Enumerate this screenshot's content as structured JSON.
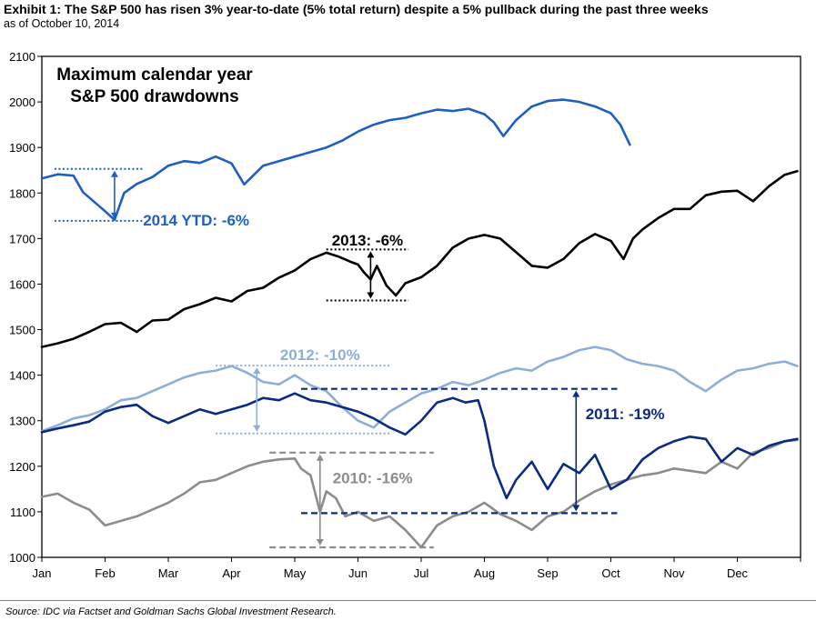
{
  "header": {
    "title": "Exhibit 1: The S&P 500 has risen 3% year-to-date (5% total return) despite a 5% pullback during the past three weeks",
    "subtitle": "as of October 10, 2014"
  },
  "footer": {
    "source": "Source: IDC via Factset and Goldman Sachs Global Investment Research."
  },
  "chart_data": {
    "type": "line",
    "title": "Maximum calendar year\nS&P 500 drawdowns",
    "title_lines": [
      "Maximum calendar year",
      "S&P 500 drawdowns"
    ],
    "xlabel": "",
    "ylabel": "",
    "x_range": [
      0,
      12
    ],
    "ylim": [
      1000,
      2100
    ],
    "yticks": [
      1000,
      1100,
      1200,
      1300,
      1400,
      1500,
      1600,
      1700,
      1800,
      1900,
      2000,
      2100
    ],
    "ytick_labels": [
      "1000",
      "1100",
      "1200",
      "1300",
      "1400",
      "1500",
      "1600",
      "1700",
      "1800",
      "1900",
      "2000",
      "2100"
    ],
    "xticks": [
      0,
      1,
      2,
      3,
      4,
      5,
      6,
      7,
      8,
      9,
      10,
      11
    ],
    "xtick_labels": [
      "Jan",
      "Feb",
      "Mar",
      "Apr",
      "May",
      "Jun",
      "Jul",
      "Aug",
      "Sep",
      "Oct",
      "Nov",
      "Dec"
    ],
    "grid": false,
    "x_unit": "month of year (0 = Jan 1, 12 = Dec 31)",
    "series": [
      {
        "id": "s2014",
        "color": "#1f5fc0",
        "x": [
          0,
          0.25,
          0.5,
          0.65,
          0.8,
          1.0,
          1.15,
          1.3,
          1.5,
          1.75,
          2.0,
          2.25,
          2.5,
          2.75,
          3.0,
          3.2,
          3.5,
          3.75,
          4.0,
          4.25,
          4.5,
          4.75,
          5.0,
          5.25,
          5.5,
          5.75,
          6.0,
          6.25,
          6.5,
          6.75,
          7.0,
          7.15,
          7.3,
          7.5,
          7.75,
          8.0,
          8.25,
          8.5,
          8.75,
          9.0,
          9.15,
          9.3
        ],
        "y": [
          1832,
          1841,
          1838,
          1802,
          1784,
          1760,
          1741,
          1800,
          1820,
          1835,
          1860,
          1870,
          1866,
          1880,
          1865,
          1819,
          1860,
          1870,
          1880,
          1890,
          1900,
          1915,
          1935,
          1950,
          1960,
          1965,
          1975,
          1983,
          1980,
          1985,
          1973,
          1955,
          1925,
          1960,
          1990,
          2002,
          2005,
          2000,
          1990,
          1975,
          1950,
          1906
        ]
      },
      {
        "id": "s2013",
        "color": "#000000",
        "x": [
          0,
          0.25,
          0.5,
          0.75,
          1.0,
          1.25,
          1.5,
          1.75,
          2.0,
          2.25,
          2.5,
          2.75,
          3.0,
          3.25,
          3.5,
          3.75,
          4.0,
          4.25,
          4.5,
          4.7,
          4.9,
          5.0,
          5.1,
          5.2,
          5.3,
          5.45,
          5.6,
          5.75,
          6.0,
          6.25,
          6.5,
          6.75,
          7.0,
          7.25,
          7.5,
          7.75,
          8.0,
          8.25,
          8.5,
          8.75,
          9.0,
          9.1,
          9.2,
          9.35,
          9.5,
          9.75,
          10.0,
          10.25,
          10.5,
          10.75,
          11.0,
          11.25,
          11.5,
          11.75,
          11.95
        ],
        "y": [
          1462,
          1470,
          1480,
          1495,
          1512,
          1515,
          1495,
          1520,
          1522,
          1545,
          1556,
          1570,
          1562,
          1585,
          1592,
          1614,
          1630,
          1655,
          1669,
          1660,
          1648,
          1643,
          1625,
          1610,
          1640,
          1597,
          1575,
          1602,
          1615,
          1640,
          1680,
          1700,
          1708,
          1700,
          1670,
          1640,
          1636,
          1655,
          1690,
          1710,
          1695,
          1675,
          1655,
          1700,
          1720,
          1745,
          1765,
          1765,
          1795,
          1803,
          1805,
          1782,
          1815,
          1840,
          1848
        ]
      },
      {
        "id": "s2012",
        "color": "#8eaed8",
        "x": [
          0,
          0.25,
          0.5,
          0.75,
          1.0,
          1.25,
          1.5,
          1.75,
          2.0,
          2.25,
          2.5,
          2.75,
          3.0,
          3.25,
          3.5,
          3.75,
          4.0,
          4.25,
          4.5,
          4.75,
          5.0,
          5.25,
          5.5,
          5.75,
          6.0,
          6.25,
          6.5,
          6.75,
          7.0,
          7.25,
          7.5,
          7.75,
          8.0,
          8.25,
          8.5,
          8.75,
          9.0,
          9.25,
          9.5,
          9.75,
          10.0,
          10.25,
          10.5,
          10.75,
          11.0,
          11.25,
          11.5,
          11.75,
          11.95
        ],
        "y": [
          1277,
          1290,
          1305,
          1312,
          1325,
          1345,
          1350,
          1365,
          1380,
          1395,
          1405,
          1410,
          1420,
          1405,
          1385,
          1380,
          1400,
          1378,
          1365,
          1330,
          1300,
          1285,
          1320,
          1340,
          1360,
          1370,
          1385,
          1378,
          1390,
          1405,
          1415,
          1410,
          1430,
          1440,
          1455,
          1462,
          1455,
          1435,
          1425,
          1420,
          1410,
          1385,
          1365,
          1390,
          1410,
          1415,
          1425,
          1430,
          1420
        ]
      },
      {
        "id": "s2011",
        "color": "#0b2b80",
        "x": [
          0,
          0.25,
          0.5,
          0.75,
          1.0,
          1.25,
          1.5,
          1.75,
          2.0,
          2.25,
          2.5,
          2.75,
          3.0,
          3.25,
          3.5,
          3.75,
          4.0,
          4.25,
          4.5,
          4.75,
          5.0,
          5.25,
          5.5,
          5.75,
          6.0,
          6.25,
          6.5,
          6.7,
          6.9,
          7.0,
          7.15,
          7.35,
          7.5,
          7.75,
          8.0,
          8.25,
          8.5,
          8.75,
          9.0,
          9.25,
          9.5,
          9.75,
          10.0,
          10.25,
          10.5,
          10.75,
          11.0,
          11.25,
          11.5,
          11.75,
          11.95
        ],
        "y": [
          1275,
          1283,
          1290,
          1298,
          1320,
          1330,
          1335,
          1310,
          1295,
          1310,
          1325,
          1315,
          1325,
          1335,
          1350,
          1345,
          1360,
          1345,
          1340,
          1330,
          1320,
          1305,
          1285,
          1270,
          1300,
          1340,
          1350,
          1340,
          1345,
          1300,
          1200,
          1130,
          1170,
          1210,
          1150,
          1205,
          1185,
          1225,
          1150,
          1170,
          1215,
          1240,
          1255,
          1265,
          1260,
          1210,
          1240,
          1225,
          1245,
          1255,
          1260
        ]
      },
      {
        "id": "s2010",
        "color": "#8c8c8c",
        "x": [
          0,
          0.25,
          0.5,
          0.75,
          1.0,
          1.25,
          1.5,
          1.75,
          2.0,
          2.25,
          2.5,
          2.75,
          3.0,
          3.25,
          3.5,
          3.75,
          4.0,
          4.1,
          4.25,
          4.4,
          4.5,
          4.65,
          4.8,
          5.0,
          5.25,
          5.5,
          5.75,
          6.0,
          6.25,
          6.5,
          6.75,
          7.0,
          7.25,
          7.5,
          7.75,
          8.0,
          8.25,
          8.5,
          8.75,
          9.0,
          9.25,
          9.5,
          9.75,
          10.0,
          10.25,
          10.5,
          10.75,
          11.0,
          11.25,
          11.5,
          11.75,
          11.95
        ],
        "y": [
          1133,
          1140,
          1120,
          1105,
          1070,
          1080,
          1090,
          1105,
          1120,
          1140,
          1165,
          1170,
          1185,
          1200,
          1210,
          1215,
          1217,
          1195,
          1180,
          1100,
          1145,
          1130,
          1090,
          1100,
          1080,
          1090,
          1060,
          1022,
          1070,
          1090,
          1100,
          1120,
          1095,
          1080,
          1060,
          1090,
          1100,
          1125,
          1145,
          1160,
          1170,
          1180,
          1185,
          1195,
          1190,
          1185,
          1210,
          1195,
          1230,
          1240,
          1255,
          1258
        ]
      }
    ],
    "annotations": [
      {
        "id": "ann2014",
        "label": "2014 YTD: -6%",
        "color": "#1f5fc0",
        "top_y": 1853,
        "bottom_y": 1739,
        "x_from": 0.2,
        "x_to": 1.6,
        "arrow_x": 1.15,
        "label_x": 1.6,
        "label_y": 1741,
        "label_anchor": "start",
        "text_size": 17
      },
      {
        "id": "ann2013",
        "label": "2013: -6%",
        "color": "#000000",
        "top_y": 1676,
        "bottom_y": 1564,
        "x_from": 4.5,
        "x_to": 5.8,
        "arrow_x": 5.2,
        "label_x": 5.15,
        "label_y": 1697,
        "label_anchor": "middle",
        "text_size": 17
      },
      {
        "id": "ann2012",
        "label": "2012: -10%",
        "color": "#8eaed8",
        "top_y": 1421,
        "bottom_y": 1272,
        "x_from": 2.75,
        "x_to": 5.5,
        "arrow_x": 3.4,
        "label_x": 4.4,
        "label_y": 1445,
        "label_anchor": "middle",
        "text_size": 17
      },
      {
        "id": "ann2011",
        "label": "2011: -19%",
        "color": "#0b2b80",
        "top_y": 1370,
        "bottom_y": 1097,
        "x_from": 4.1,
        "x_to": 9.1,
        "arrow_x": 8.45,
        "label_x": 8.6,
        "label_y": 1315,
        "label_anchor": "start",
        "text_size": 17
      },
      {
        "id": "ann2010",
        "label": "2010: -16%",
        "color": "#8c8c8c",
        "top_y": 1230,
        "bottom_y": 1022,
        "x_from": 3.6,
        "x_to": 6.2,
        "arrow_x": 4.4,
        "label_x": 4.6,
        "label_y": 1175,
        "label_anchor": "start",
        "text_size": 17
      }
    ]
  }
}
